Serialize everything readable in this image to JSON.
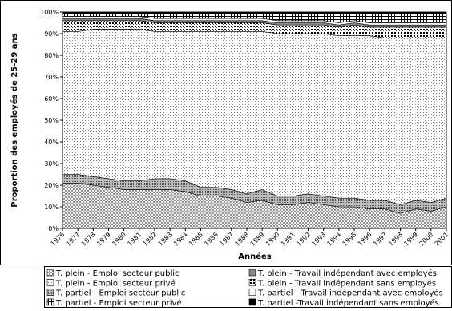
{
  "chart_data": {
    "type": "stacked-area",
    "y_label": "Proportion des employés de 25-29 ans",
    "x_label": "Années",
    "categories": [
      "1976",
      "1977",
      "1978",
      "1979",
      "1980",
      "1981",
      "1982",
      "1983",
      "1984",
      "1985",
      "1986",
      "1987",
      "1988",
      "1989",
      "1990",
      "1991",
      "1992",
      "1993",
      "1994",
      "1995",
      "1996",
      "1997",
      "1998",
      "1999",
      "2000",
      "2001"
    ],
    "ylim": [
      0,
      100
    ],
    "yticks": [
      {
        "value": 0,
        "label": "0%"
      },
      {
        "value": 10,
        "label": "10%"
      },
      {
        "value": 20,
        "label": "20%"
      },
      {
        "value": 30,
        "label": "30%"
      },
      {
        "value": 40,
        "label": "40%"
      },
      {
        "value": 50,
        "label": "50%"
      },
      {
        "value": 60,
        "label": "60%"
      },
      {
        "value": 70,
        "label": "70%"
      },
      {
        "value": 80,
        "label": "80%"
      },
      {
        "value": 90,
        "label": "90%"
      },
      {
        "value": 100,
        "label": "100%"
      }
    ],
    "series": [
      {
        "name": "T. plein - Emploi secteur public",
        "pattern": "hatch",
        "values": [
          21,
          21,
          20,
          19,
          18,
          18,
          18,
          18,
          17,
          15,
          15,
          14,
          12,
          13,
          11,
          11,
          12,
          11,
          10,
          10,
          9,
          9,
          7,
          9,
          8,
          10
        ]
      },
      {
        "name": "T. partiel - Emploi secteur public",
        "pattern": "darkdots",
        "values": [
          4,
          4,
          4,
          4,
          4,
          4,
          5,
          5,
          5,
          4,
          4,
          4,
          4,
          5,
          4,
          4,
          4,
          4,
          4,
          4,
          4,
          4,
          4,
          4,
          4,
          4
        ]
      },
      {
        "name": "T. plein - Emploi secteur privé",
        "pattern": "lightdots",
        "values": [
          66,
          66,
          68,
          69,
          70,
          70,
          68,
          68,
          69,
          72,
          72,
          73,
          75,
          73,
          75,
          75,
          74,
          75,
          75,
          75,
          76,
          75,
          77,
          75,
          76,
          74
        ]
      },
      {
        "name": "T. plein - Travail indépendant sans employés",
        "pattern": "heavydots",
        "values": [
          5,
          5,
          4,
          4,
          4,
          4,
          4,
          4,
          4,
          4,
          4,
          4,
          4,
          4,
          4,
          4,
          4,
          4,
          4,
          5,
          4,
          5,
          5,
          5,
          5,
          5
        ]
      },
      {
        "name": "T. plein - Travail indépendant avec employés",
        "pattern": "gray",
        "values": [
          1,
          1,
          1,
          1,
          1,
          1,
          1,
          1,
          1,
          1,
          1,
          1,
          1,
          1,
          1,
          1,
          1,
          1,
          1,
          1,
          1,
          1,
          1,
          1,
          1,
          1
        ]
      },
      {
        "name": "T. partiel - Travail indépendant avec employés",
        "pattern": "white",
        "values": [
          1,
          1,
          1,
          1,
          1,
          1,
          1,
          1,
          1,
          1,
          1,
          1,
          1,
          1,
          1,
          1,
          1,
          1,
          1,
          1,
          1,
          1,
          1,
          1,
          1,
          1
        ]
      },
      {
        "name": "T. partiel - Emploi secteur privé",
        "pattern": "grid",
        "values": [
          1,
          1,
          1,
          1,
          1,
          1,
          2,
          2,
          2,
          2,
          2,
          2,
          2,
          2,
          3,
          3,
          3,
          3,
          4,
          3,
          4,
          4,
          4,
          4,
          4,
          4
        ]
      },
      {
        "name": "T. partiel -Travail indépendant sans employés",
        "pattern": "black",
        "values": [
          1,
          1,
          1,
          1,
          1,
          1,
          1,
          1,
          1,
          1,
          1,
          1,
          1,
          1,
          1,
          1,
          1,
          1,
          1,
          1,
          1,
          1,
          1,
          1,
          1,
          1
        ]
      }
    ]
  }
}
